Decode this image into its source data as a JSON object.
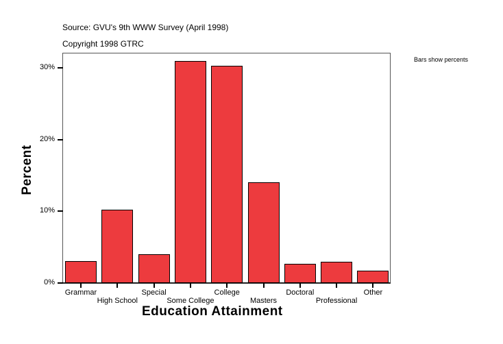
{
  "header": {
    "source": "Source: GVU's 9th WWW Survey (April 1998)",
    "copyright": "Copyright 1998 GTRC"
  },
  "note": "Bars show percents",
  "colors": {
    "bar": "#ed3b3e",
    "bar_border": "#000000"
  },
  "chart_data": {
    "type": "bar",
    "title": "",
    "xlabel": "Education Attainment",
    "ylabel": "Percent",
    "categories": [
      "Grammar",
      "High School",
      "Special",
      "Some College",
      "College",
      "Masters",
      "Doctoral",
      "Professional",
      "Other"
    ],
    "values": [
      3.1,
      10.2,
      4.0,
      30.9,
      30.3,
      14.0,
      2.7,
      3.0,
      1.7
    ],
    "yticks": [
      "0%",
      "10%",
      "20%",
      "30%"
    ],
    "ylim": [
      0,
      30
    ],
    "grid": false,
    "legend": "none",
    "annotations": [
      "Bars show percents"
    ]
  }
}
